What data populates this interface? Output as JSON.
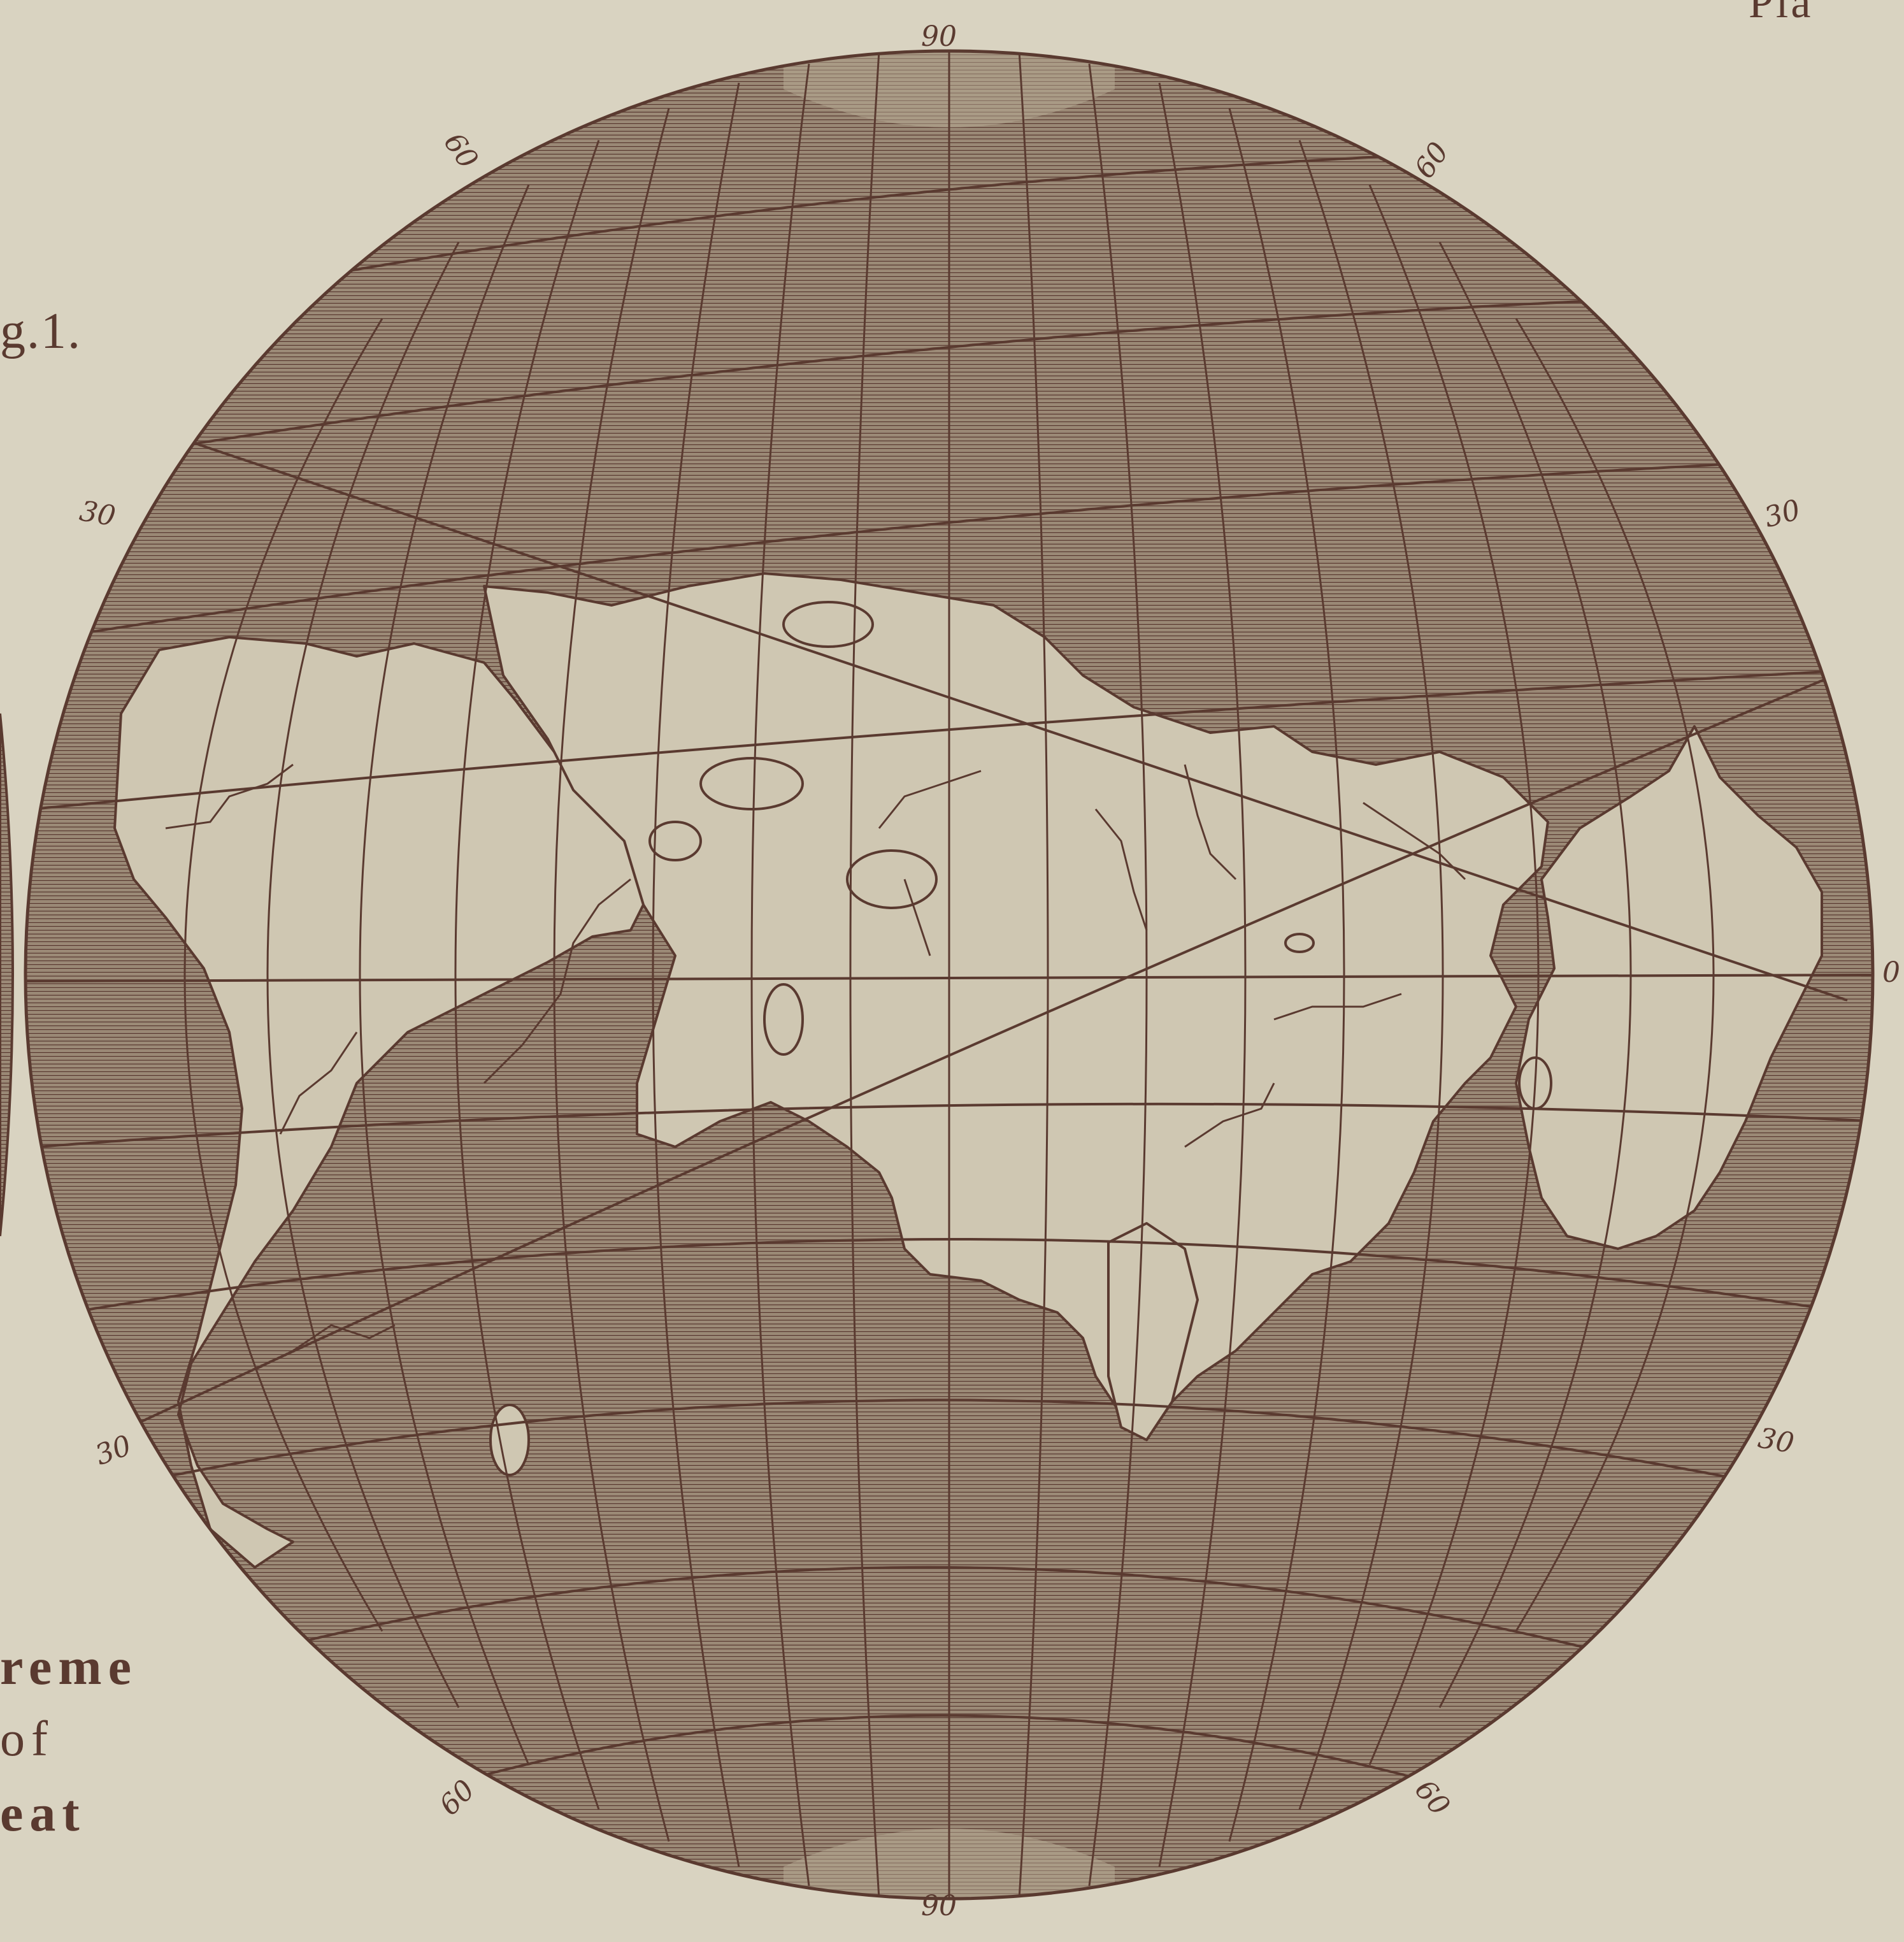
{
  "plate": {
    "figure_label": "g.1.",
    "corner_text": "Pla",
    "side_caption": [
      "reme",
      "of",
      "eat"
    ]
  },
  "graticule_labels": {
    "top": "90",
    "bottom": "90",
    "upper_left": "60",
    "upper_right": "60",
    "lower_left": "60",
    "lower_right": "60",
    "left_upper": "30",
    "left_lower": "30",
    "right_upper": "30",
    "right_lower": "30",
    "equator_right": "0"
  },
  "colors": {
    "paper": "#d9d3c1",
    "ink": "#5a3a30",
    "ocean_hatch": "#7a5c50",
    "land": "#cfc7b2"
  }
}
